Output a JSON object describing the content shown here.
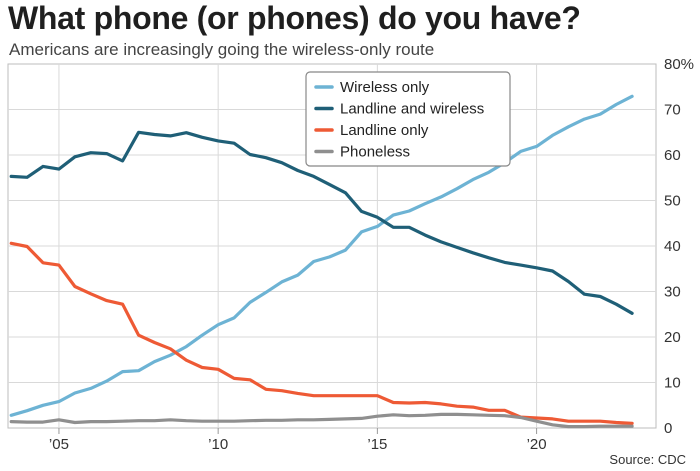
{
  "title": "What phone (or phones) do you have?",
  "subtitle": "Americans are increasingly going the wireless-only route",
  "source": "Source: CDC",
  "chart_data": {
    "type": "line",
    "xlim": [
      2003.4,
      2023.75
    ],
    "ylim": [
      0,
      80
    ],
    "grid": true,
    "legend_position": "top-center",
    "x_ticks": [
      {
        "value": 2005,
        "label": "’05"
      },
      {
        "value": 2010,
        "label": "’10"
      },
      {
        "value": 2015,
        "label": "’15"
      },
      {
        "value": 2020,
        "label": "’20"
      }
    ],
    "y_ticks": [
      {
        "value": 0,
        "label": "0"
      },
      {
        "value": 10,
        "label": "10"
      },
      {
        "value": 20,
        "label": "20"
      },
      {
        "value": 30,
        "label": "30"
      },
      {
        "value": 40,
        "label": "40"
      },
      {
        "value": 50,
        "label": "50"
      },
      {
        "value": 60,
        "label": "60"
      },
      {
        "value": 70,
        "label": "70"
      },
      {
        "value": 80,
        "label": "80%"
      }
    ],
    "x": [
      2003.5,
      2004,
      2004.5,
      2005,
      2005.5,
      2006,
      2006.5,
      2007,
      2007.5,
      2008,
      2008.5,
      2009,
      2009.5,
      2010,
      2010.5,
      2011,
      2011.5,
      2012,
      2012.5,
      2013,
      2013.5,
      2014,
      2014.5,
      2015,
      2015.5,
      2016,
      2016.5,
      2017,
      2017.5,
      2018,
      2018.5,
      2019,
      2019.5,
      2020,
      2020.5,
      2021,
      2021.5,
      2022,
      2022.5,
      2023
    ],
    "series": [
      {
        "name": "Wireless only",
        "color": "#6db3d4",
        "values": [
          2.8,
          3.8,
          5.0,
          5.8,
          7.7,
          8.7,
          10.3,
          12.4,
          12.6,
          14.6,
          16.0,
          17.9,
          20.4,
          22.7,
          24.2,
          27.6,
          29.8,
          32.1,
          33.6,
          36.6,
          37.6,
          39.1,
          43.1,
          44.3,
          46.8,
          47.7,
          49.3,
          50.8,
          52.6,
          54.6,
          56.2,
          58.3,
          60.8,
          61.9,
          64.3,
          66.2,
          67.9,
          69.0,
          71.1,
          72.9
        ]
      },
      {
        "name": "Landline and wireless",
        "color": "#1f5f77",
        "values": [
          55.3,
          55.1,
          57.5,
          56.9,
          59.6,
          60.5,
          60.3,
          58.7,
          65.0,
          64.5,
          64.2,
          64.9,
          63.9,
          63.1,
          62.6,
          60.1,
          59.4,
          58.3,
          56.6,
          55.3,
          53.5,
          51.7,
          47.6,
          46.3,
          44.1,
          44.1,
          42.4,
          40.9,
          39.7,
          38.5,
          37.4,
          36.4,
          35.8,
          35.2,
          34.5,
          32.2,
          29.4,
          28.9,
          27.2,
          25.2
        ]
      },
      {
        "name": "Landline only",
        "color": "#ee5a35",
        "values": [
          40.6,
          39.9,
          36.3,
          35.8,
          31.1,
          29.5,
          28.0,
          27.2,
          20.4,
          18.8,
          17.4,
          14.9,
          13.3,
          12.9,
          10.9,
          10.6,
          8.5,
          8.2,
          7.6,
          7.1,
          7.1,
          7.1,
          7.1,
          7.1,
          5.6,
          5.5,
          5.6,
          5.3,
          4.8,
          4.6,
          3.9,
          3.9,
          2.4,
          2.2,
          2.0,
          1.5,
          1.5,
          1.5,
          1.2,
          1.0
        ]
      },
      {
        "name": "Phoneless",
        "color": "#8f8f8f",
        "values": [
          1.4,
          1.3,
          1.3,
          1.8,
          1.2,
          1.4,
          1.4,
          1.5,
          1.6,
          1.6,
          1.8,
          1.6,
          1.5,
          1.5,
          1.5,
          1.6,
          1.7,
          1.7,
          1.8,
          1.8,
          1.9,
          2.0,
          2.1,
          2.6,
          2.9,
          2.7,
          2.8,
          3.0,
          3.0,
          2.9,
          2.8,
          2.7,
          2.3,
          1.5,
          0.7,
          0.3,
          0.3,
          0.4,
          0.4,
          0.4
        ]
      }
    ]
  }
}
